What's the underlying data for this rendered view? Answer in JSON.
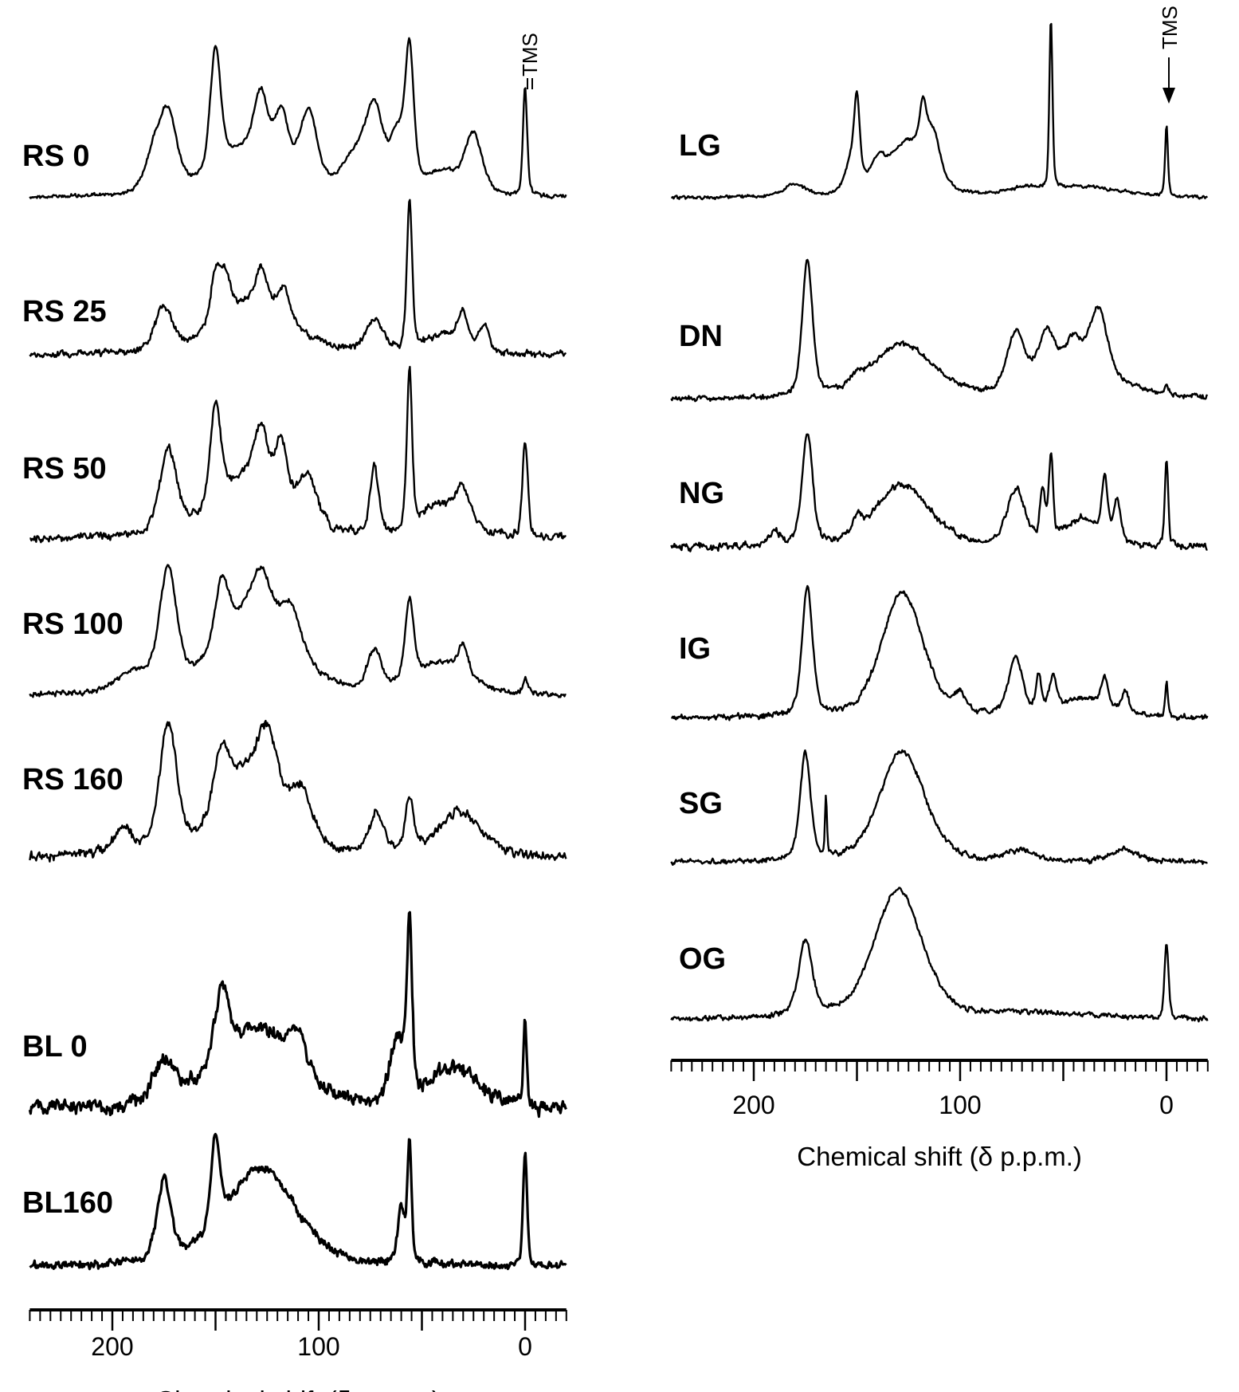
{
  "chart_data": [
    {
      "type": "line",
      "panel": "left",
      "xlabel": "Chemical shift (δ p.p.m.)",
      "xlim": [
        240,
        -20
      ],
      "x_reversed": true,
      "xticks": [
        200,
        100,
        0
      ],
      "tick_labels": [
        "200",
        "100",
        "0"
      ],
      "reference_label": "TMS",
      "y_axis": "relative intensity (no axis shown)",
      "spectra": [
        {
          "label": "RS 0",
          "peaks": [
            {
              "ppm": 173,
              "intensity": 0.42,
              "width": 5
            },
            {
              "ppm": 180,
              "intensity": 0.2,
              "width": 5
            },
            {
              "ppm": 150,
              "intensity": 0.68,
              "width": 3
            },
            {
              "ppm": 135,
              "intensity": 0.25,
              "width": 18
            },
            {
              "ppm": 128,
              "intensity": 0.35,
              "width": 4
            },
            {
              "ppm": 118,
              "intensity": 0.32,
              "width": 4
            },
            {
              "ppm": 105,
              "intensity": 0.42,
              "width": 5
            },
            {
              "ppm": 82,
              "intensity": 0.2,
              "width": 8
            },
            {
              "ppm": 73,
              "intensity": 0.42,
              "width": 5
            },
            {
              "ppm": 62,
              "intensity": 0.3,
              "width": 4
            },
            {
              "ppm": 56,
              "intensity": 0.75,
              "width": 2.5
            },
            {
              "ppm": 40,
              "intensity": 0.12,
              "width": 10
            },
            {
              "ppm": 25,
              "intensity": 0.33,
              "width": 5
            },
            {
              "ppm": 0,
              "intensity": 0.6,
              "width": 1.2
            }
          ]
        },
        {
          "label": "RS 25",
          "peaks": [
            {
              "ppm": 175,
              "intensity": 0.25,
              "width": 5
            },
            {
              "ppm": 150,
              "intensity": 0.3,
              "width": 3
            },
            {
              "ppm": 145,
              "intensity": 0.22,
              "width": 3
            },
            {
              "ppm": 130,
              "intensity": 0.3,
              "width": 20
            },
            {
              "ppm": 128,
              "intensity": 0.18,
              "width": 3
            },
            {
              "ppm": 117,
              "intensity": 0.16,
              "width": 3
            },
            {
              "ppm": 73,
              "intensity": 0.18,
              "width": 5
            },
            {
              "ppm": 56,
              "intensity": 0.85,
              "width": 1.5
            },
            {
              "ppm": 40,
              "intensity": 0.1,
              "width": 10
            },
            {
              "ppm": 30,
              "intensity": 0.2,
              "width": 3
            },
            {
              "ppm": 20,
              "intensity": 0.15,
              "width": 3
            }
          ]
        },
        {
          "label": "RS 50",
          "peaks": [
            {
              "ppm": 173,
              "intensity": 0.45,
              "width": 5
            },
            {
              "ppm": 150,
              "intensity": 0.55,
              "width": 3
            },
            {
              "ppm": 132,
              "intensity": 0.35,
              "width": 20
            },
            {
              "ppm": 128,
              "intensity": 0.28,
              "width": 4
            },
            {
              "ppm": 118,
              "intensity": 0.3,
              "width": 3
            },
            {
              "ppm": 105,
              "intensity": 0.25,
              "width": 5
            },
            {
              "ppm": 73,
              "intensity": 0.38,
              "width": 2.5
            },
            {
              "ppm": 56,
              "intensity": 0.88,
              "width": 1.5
            },
            {
              "ppm": 40,
              "intensity": 0.18,
              "width": 12
            },
            {
              "ppm": 30,
              "intensity": 0.18,
              "width": 4
            },
            {
              "ppm": 0,
              "intensity": 0.55,
              "width": 1.5
            }
          ]
        },
        {
          "label": "RS 100",
          "peaks": [
            {
              "ppm": 173,
              "intensity": 0.65,
              "width": 5
            },
            {
              "ppm": 147,
              "intensity": 0.35,
              "width": 4
            },
            {
              "ppm": 130,
              "intensity": 0.5,
              "width": 20
            },
            {
              "ppm": 128,
              "intensity": 0.2,
              "width": 5
            },
            {
              "ppm": 113,
              "intensity": 0.2,
              "width": 5
            },
            {
              "ppm": 190,
              "intensity": 0.1,
              "width": 10
            },
            {
              "ppm": 73,
              "intensity": 0.22,
              "width": 4
            },
            {
              "ppm": 56,
              "intensity": 0.45,
              "width": 2.5
            },
            {
              "ppm": 40,
              "intensity": 0.17,
              "width": 15
            },
            {
              "ppm": 30,
              "intensity": 0.15,
              "width": 3
            },
            {
              "ppm": 0,
              "intensity": 0.07,
              "width": 1.5
            }
          ]
        },
        {
          "label": "RS 160",
          "peaks": [
            {
              "ppm": 173,
              "intensity": 0.72,
              "width": 5
            },
            {
              "ppm": 195,
              "intensity": 0.15,
              "width": 5
            },
            {
              "ppm": 147,
              "intensity": 0.35,
              "width": 5
            },
            {
              "ppm": 130,
              "intensity": 0.5,
              "width": 18
            },
            {
              "ppm": 125,
              "intensity": 0.25,
              "width": 5
            },
            {
              "ppm": 108,
              "intensity": 0.2,
              "width": 5
            },
            {
              "ppm": 72,
              "intensity": 0.22,
              "width": 4
            },
            {
              "ppm": 56,
              "intensity": 0.3,
              "width": 2.5
            },
            {
              "ppm": 32,
              "intensity": 0.25,
              "width": 12
            }
          ]
        },
        {
          "label": "BL 0",
          "peaks": [
            {
              "ppm": 175,
              "intensity": 0.25,
              "width": 6
            },
            {
              "ppm": 147,
              "intensity": 0.4,
              "width": 4
            },
            {
              "ppm": 130,
              "intensity": 0.45,
              "width": 22
            },
            {
              "ppm": 110,
              "intensity": 0.2,
              "width": 5
            },
            {
              "ppm": 62,
              "intensity": 0.35,
              "width": 4
            },
            {
              "ppm": 56,
              "intensity": 0.95,
              "width": 1.5
            },
            {
              "ppm": 35,
              "intensity": 0.22,
              "width": 15
            },
            {
              "ppm": 0,
              "intensity": 0.47,
              "width": 1.0
            }
          ]
        },
        {
          "label": "BL160",
          "peaks": [
            {
              "ppm": 175,
              "intensity": 0.45,
              "width": 4
            },
            {
              "ppm": 150,
              "intensity": 0.5,
              "width": 2.5
            },
            {
              "ppm": 128,
              "intensity": 0.55,
              "width": 20
            },
            {
              "ppm": 60,
              "intensity": 0.3,
              "width": 2
            },
            {
              "ppm": 56,
              "intensity": 0.68,
              "width": 1.2
            },
            {
              "ppm": 0,
              "intensity": 0.62,
              "width": 1.2
            }
          ]
        }
      ]
    },
    {
      "type": "line",
      "panel": "right",
      "xlabel": "Chemical shift (δ p.p.m.)",
      "xlim": [
        240,
        -20
      ],
      "x_reversed": true,
      "xticks": [
        200,
        100,
        0
      ],
      "tick_labels": [
        "200",
        "100",
        "0"
      ],
      "reference_label": "TMS",
      "spectra": [
        {
          "label": "LG",
          "peaks": [
            {
              "ppm": 180,
              "intensity": 0.07,
              "width": 6
            },
            {
              "ppm": 152,
              "intensity": 0.2,
              "width": 4
            },
            {
              "ppm": 150,
              "intensity": 0.38,
              "width": 1.5
            },
            {
              "ppm": 140,
              "intensity": 0.12,
              "width": 4
            },
            {
              "ppm": 125,
              "intensity": 0.3,
              "width": 12
            },
            {
              "ppm": 118,
              "intensity": 0.25,
              "width": 2
            },
            {
              "ppm": 113,
              "intensity": 0.22,
              "width": 4
            },
            {
              "ppm": 70,
              "intensity": 0.04,
              "width": 10
            },
            {
              "ppm": 56,
              "intensity": 0.95,
              "width": 0.9
            },
            {
              "ppm": 40,
              "intensity": 0.06,
              "width": 20
            },
            {
              "ppm": 0,
              "intensity": 0.4,
              "width": 0.8
            }
          ]
        },
        {
          "label": "DN",
          "peaks": [
            {
              "ppm": 174,
              "intensity": 0.75,
              "width": 3
            },
            {
              "ppm": 150,
              "intensity": 0.05,
              "width": 3
            },
            {
              "ppm": 128,
              "intensity": 0.3,
              "width": 18
            },
            {
              "ppm": 73,
              "intensity": 0.32,
              "width": 5
            },
            {
              "ppm": 58,
              "intensity": 0.28,
              "width": 5
            },
            {
              "ppm": 45,
              "intensity": 0.2,
              "width": 5
            },
            {
              "ppm": 33,
              "intensity": 0.38,
              "width": 5
            },
            {
              "ppm": 40,
              "intensity": 0.12,
              "width": 25
            },
            {
              "ppm": 0,
              "intensity": 0.05,
              "width": 1
            }
          ]
        },
        {
          "label": "NG",
          "peaks": [
            {
              "ppm": 174,
              "intensity": 0.62,
              "width": 3
            },
            {
              "ppm": 190,
              "intensity": 0.07,
              "width": 4
            },
            {
              "ppm": 150,
              "intensity": 0.08,
              "width": 3
            },
            {
              "ppm": 128,
              "intensity": 0.35,
              "width": 16
            },
            {
              "ppm": 73,
              "intensity": 0.32,
              "width": 5
            },
            {
              "ppm": 60,
              "intensity": 0.28,
              "width": 1.5
            },
            {
              "ppm": 56,
              "intensity": 0.45,
              "width": 1.2
            },
            {
              "ppm": 40,
              "intensity": 0.15,
              "width": 12
            },
            {
              "ppm": 30,
              "intensity": 0.32,
              "width": 1.5
            },
            {
              "ppm": 24,
              "intensity": 0.2,
              "width": 2
            },
            {
              "ppm": 0,
              "intensity": 0.48,
              "width": 1
            }
          ]
        },
        {
          "label": "IG",
          "peaks": [
            {
              "ppm": 174,
              "intensity": 0.72,
              "width": 3
            },
            {
              "ppm": 128,
              "intensity": 0.7,
              "width": 12
            },
            {
              "ppm": 100,
              "intensity": 0.1,
              "width": 3
            },
            {
              "ppm": 73,
              "intensity": 0.32,
              "width": 4
            },
            {
              "ppm": 62,
              "intensity": 0.2,
              "width": 1.5
            },
            {
              "ppm": 55,
              "intensity": 0.18,
              "width": 2
            },
            {
              "ppm": 40,
              "intensity": 0.1,
              "width": 15
            },
            {
              "ppm": 30,
              "intensity": 0.15,
              "width": 2
            },
            {
              "ppm": 20,
              "intensity": 0.12,
              "width": 2
            },
            {
              "ppm": 0,
              "intensity": 0.2,
              "width": 0.8
            }
          ]
        },
        {
          "label": "SG",
          "peaks": [
            {
              "ppm": 175,
              "intensity": 0.6,
              "width": 3
            },
            {
              "ppm": 165,
              "intensity": 0.33,
              "width": 0.6
            },
            {
              "ppm": 128,
              "intensity": 0.62,
              "width": 13
            },
            {
              "ppm": 70,
              "intensity": 0.06,
              "width": 8
            },
            {
              "ppm": 20,
              "intensity": 0.07,
              "width": 8
            }
          ]
        },
        {
          "label": "OG",
          "peaks": [
            {
              "ppm": 175,
              "intensity": 0.42,
              "width": 4
            },
            {
              "ppm": 130,
              "intensity": 0.72,
              "width": 14
            },
            {
              "ppm": 60,
              "intensity": 0.03,
              "width": 30
            },
            {
              "ppm": 0,
              "intensity": 0.42,
              "width": 1.2
            }
          ]
        }
      ]
    }
  ]
}
